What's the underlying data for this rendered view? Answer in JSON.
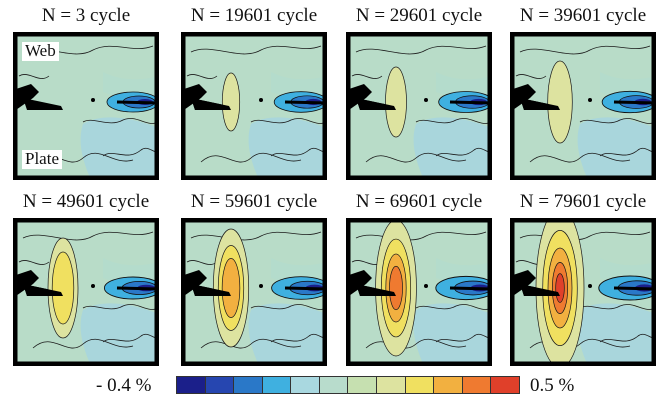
{
  "panels": [
    {
      "title": "N = 3 cycle",
      "level": 0.0
    },
    {
      "title": "N = 19601 cycle",
      "level": 0.15
    },
    {
      "title": "N = 29601 cycle",
      "level": 0.25
    },
    {
      "title": "N = 39601 cycle",
      "level": 0.35
    },
    {
      "title": "N = 49601 cycle",
      "level": 0.5
    },
    {
      "title": "N = 59601 cycle",
      "level": 0.65
    },
    {
      "title": "N = 69601 cycle",
      "level": 0.8
    },
    {
      "title": "N = 79601 cycle",
      "level": 1.0
    }
  ],
  "region_labels": {
    "web": "Web",
    "plate": "Plate"
  },
  "colorbar": {
    "min_label": "- 0.4 %",
    "max_label": "0.5 %",
    "colors": [
      "#1b1f8a",
      "#2646b0",
      "#2a78c8",
      "#3fb0e0",
      "#a9d8e0",
      "#b8dccc",
      "#c6e0b0",
      "#dde3a0",
      "#f0e060",
      "#f2b040",
      "#ef7a30",
      "#e0402a"
    ]
  }
}
